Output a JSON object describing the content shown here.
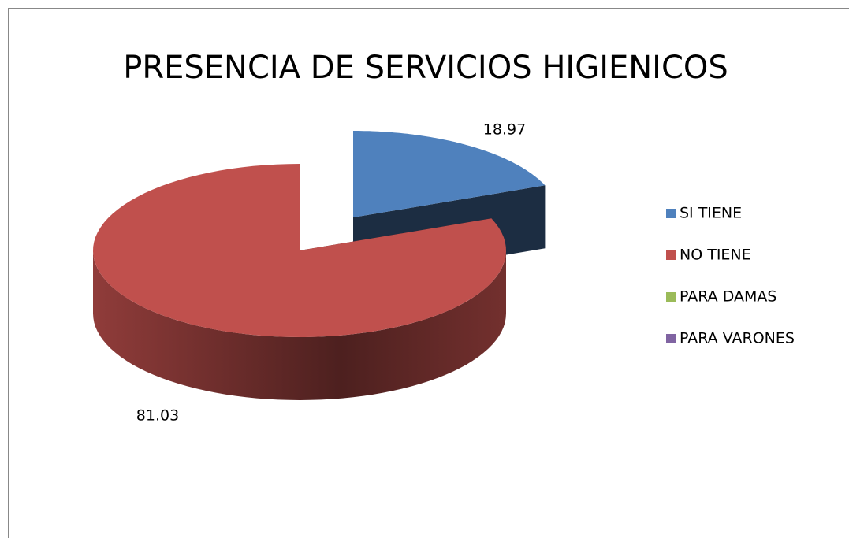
{
  "chart_data": {
    "type": "pie",
    "title": "PRESENCIA DE SERVICIOS HIGIENICOS",
    "categories": [
      "SI TIENE",
      "NO TIENE",
      "PARA DAMAS",
      "PARA VARONES"
    ],
    "values": [
      18.97,
      81.03,
      0,
      0
    ],
    "colors": [
      "#4f81bd",
      "#c0504d",
      "#9bbb59",
      "#8064a2"
    ],
    "legend": "right"
  }
}
